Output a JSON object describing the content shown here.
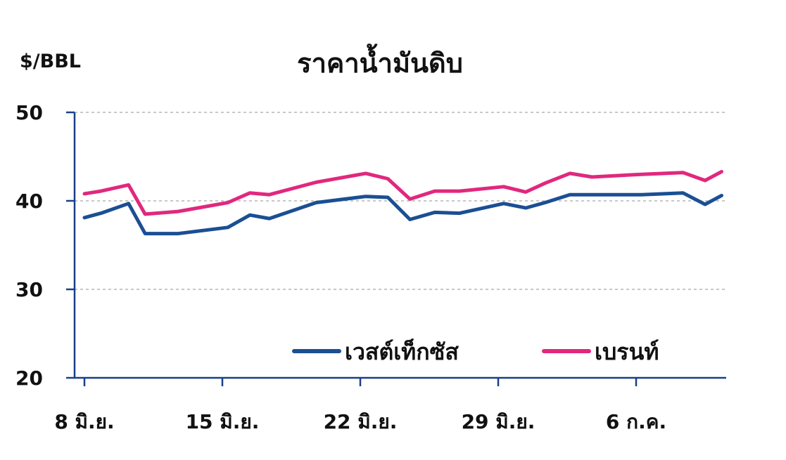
{
  "chart_data": {
    "type": "line",
    "title": "ราคาน้ำมันดิบ",
    "ylabel": "$/BBL",
    "xlabel": "",
    "ylim": [
      20,
      50
    ],
    "yticks": [
      50,
      40,
      30,
      20
    ],
    "grid": true,
    "legend_position": "bottom-right",
    "xtick_labels": [
      {
        "label": "8 มิ.ย.",
        "index": 0
      },
      {
        "label": "15 มิ.ย.",
        "index": 5
      },
      {
        "label": "22 มิ.ย.",
        "index": 10
      },
      {
        "label": "29 มิ.ย.",
        "index": 15
      },
      {
        "label": "6 ก.ค.",
        "index": 20
      }
    ],
    "x": [
      0,
      0.6,
      1.6,
      2.2,
      3.4,
      5.2,
      6,
      6.7,
      8.4,
      10.2,
      11,
      11.8,
      12.7,
      13.6,
      15.2,
      16,
      16.7,
      17.6,
      18.4,
      20.2,
      21.7,
      22.5,
      23.1
    ],
    "series": [
      {
        "name": "เวสต์เท็กซัส",
        "color": "#1b4f93",
        "values": [
          38.1,
          38.6,
          39.7,
          36.3,
          36.3,
          37.0,
          38.4,
          38.0,
          39.8,
          40.5,
          40.4,
          37.9,
          38.7,
          38.6,
          39.7,
          39.2,
          39.8,
          40.7,
          40.7,
          40.7,
          40.9,
          39.6,
          40.6
        ]
      },
      {
        "name": "เบรนท์",
        "color": "#e0287e",
        "values": [
          40.8,
          41.1,
          41.8,
          38.5,
          38.8,
          39.8,
          40.9,
          40.7,
          42.1,
          43.1,
          42.5,
          40.2,
          41.1,
          41.1,
          41.6,
          41.0,
          42.0,
          43.1,
          42.7,
          43.0,
          43.2,
          42.3,
          43.3
        ]
      }
    ]
  }
}
